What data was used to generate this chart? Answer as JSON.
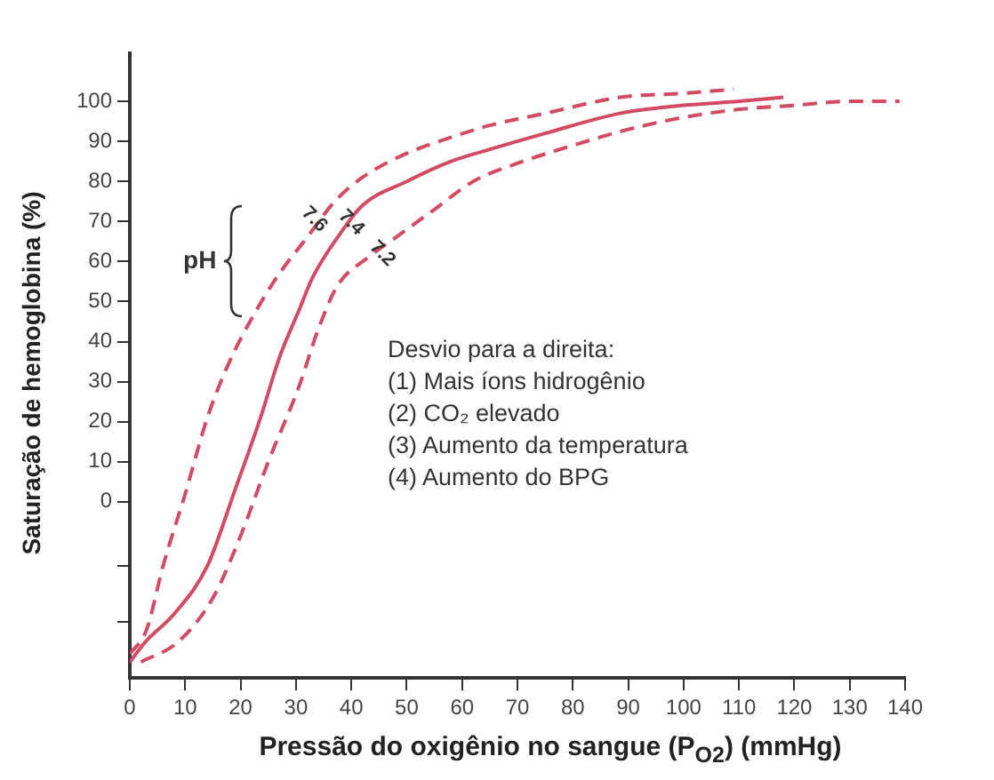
{
  "chart_data": {
    "type": "line",
    "xlabel": "Pressão do oxigênio no sangue (P$_{O2}$) (mmHg)",
    "ylabel": "Saturação de hemoglobina (%)",
    "xlim": [
      0,
      140
    ],
    "xticks": [
      0,
      10,
      20,
      30,
      40,
      50,
      60,
      70,
      80,
      90,
      100,
      110,
      120,
      130,
      140
    ],
    "ylim": [
      -44,
      112
    ],
    "yticks": [
      {
        "value": -30,
        "label": null
      },
      {
        "value": -16,
        "label": null
      },
      0,
      10,
      20,
      30,
      40,
      50,
      60,
      70,
      80,
      90,
      100
    ],
    "grid": false,
    "legend": false,
    "marker": "none",
    "series": [
      {
        "name": "7.6",
        "color": "#d24a63",
        "line_style": "dashed",
        "x": [
          0,
          3,
          6,
          10,
          14,
          18,
          22.5,
          27,
          32,
          37,
          42,
          50,
          58,
          65,
          75,
          88.5,
          100,
          109
        ],
        "values": [
          -38,
          -32,
          -16,
          2,
          21,
          35,
          47,
          57,
          66,
          75,
          81,
          87,
          91,
          94,
          97,
          101,
          102,
          103
        ]
      },
      {
        "name": "7.4",
        "color": "#d24a63",
        "line_style": "solid",
        "x": [
          0,
          2.8,
          8,
          14,
          19,
          23.6,
          27,
          30.6,
          33,
          38,
          42,
          50,
          58,
          65,
          75,
          88.5,
          100,
          110,
          118
        ],
        "values": [
          -40,
          -35,
          -28,
          -16,
          3,
          21,
          36,
          48,
          56,
          67,
          74,
          80,
          85,
          88,
          92,
          97,
          99,
          100,
          101
        ]
      },
      {
        "name": "7.2",
        "color": "#d24a63",
        "line_style": "dashed",
        "x": [
          2,
          8.7,
          15,
          20,
          25,
          30.6,
          34,
          37.5,
          43,
          48,
          55,
          62,
          71,
          80,
          90,
          100,
          110,
          120,
          130,
          139
        ],
        "values": [
          -40,
          -35,
          -24,
          -8.5,
          10,
          29,
          43,
          54,
          61,
          66,
          73,
          80,
          85,
          89,
          93,
          96,
          98,
          99,
          100,
          100
        ]
      }
    ],
    "annotations": [
      "pH",
      "Desvio para a direita:",
      "(1) Mais íons hidrogênio",
      "(2) CO₂ elevado",
      "(3) Aumento da temperatura",
      "(4) Aumento do BPG"
    ]
  }
}
